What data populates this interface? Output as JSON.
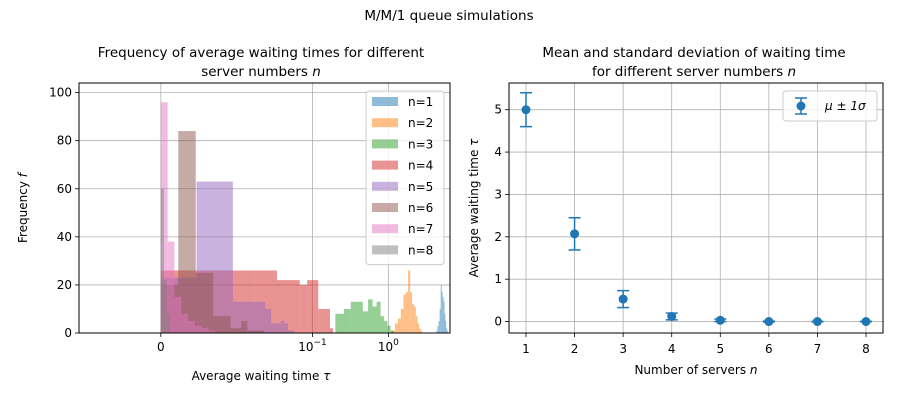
{
  "suptitle": "M/M/1 queue simulations",
  "chart_data": [
    {
      "type": "histogram",
      "title_line1": "Frequency of average waiting times for different",
      "title_line2": "server numbers",
      "title_var": "n",
      "xlabel": "Average waiting time",
      "xlabel_var": "τ",
      "ylabel": "Frequency",
      "ylabel_var": "f",
      "xscale": "symlog",
      "xlim": [
        -0.012,
        6.5
      ],
      "ylim": [
        0,
        104
      ],
      "xticks": [
        {
          "value": 0,
          "label": "0"
        },
        {
          "value": 0.1,
          "label": "10",
          "exp": "−1"
        },
        {
          "value": 1,
          "label": "10",
          "exp": "0"
        }
      ],
      "yticks": [
        0,
        20,
        40,
        60,
        80,
        100
      ],
      "grid": true,
      "legend": "top-right",
      "series": [
        {
          "name": "n=1",
          "color": "#1f77b4",
          "alpha": 0.5,
          "bins": [
            [
              4.3,
              4.45,
              1
            ],
            [
              4.45,
              4.6,
              3
            ],
            [
              4.6,
              4.75,
              5
            ],
            [
              4.75,
              4.9,
              10
            ],
            [
              4.9,
              5.05,
              20
            ],
            [
              5.05,
              5.2,
              17
            ],
            [
              5.2,
              5.35,
              15
            ],
            [
              5.35,
              5.5,
              13
            ],
            [
              5.5,
              5.65,
              8
            ],
            [
              5.65,
              5.8,
              5
            ],
            [
              5.8,
              5.95,
              2
            ],
            [
              5.95,
              6.1,
              1
            ]
          ]
        },
        {
          "name": "n=2",
          "color": "#ff7f0e",
          "alpha": 0.5,
          "bins": [
            [
              1.1,
              1.22,
              1
            ],
            [
              1.22,
              1.34,
              4
            ],
            [
              1.34,
              1.46,
              6
            ],
            [
              1.46,
              1.58,
              10
            ],
            [
              1.58,
              1.7,
              16
            ],
            [
              1.7,
              1.82,
              17
            ],
            [
              1.82,
              1.94,
              26
            ],
            [
              1.94,
              2.06,
              17
            ],
            [
              2.06,
              2.18,
              12
            ],
            [
              2.18,
              2.3,
              11
            ],
            [
              2.3,
              2.42,
              7
            ],
            [
              2.42,
              2.54,
              4
            ],
            [
              2.54,
              2.66,
              2
            ],
            [
              2.66,
              2.8,
              1
            ]
          ]
        },
        {
          "name": "n=3",
          "color": "#2ca02c",
          "alpha": 0.5,
          "bins": [
            [
              0.2,
              0.26,
              8
            ],
            [
              0.26,
              0.32,
              10
            ],
            [
              0.32,
              0.39,
              13
            ],
            [
              0.39,
              0.46,
              13
            ],
            [
              0.46,
              0.54,
              9
            ],
            [
              0.54,
              0.62,
              14
            ],
            [
              0.62,
              0.7,
              11
            ],
            [
              0.7,
              0.79,
              13
            ],
            [
              0.79,
              0.88,
              7
            ],
            [
              0.88,
              0.97,
              5
            ],
            [
              0.97,
              1.07,
              3
            ],
            [
              1.07,
              1.18,
              1
            ]
          ]
        },
        {
          "name": "n=4",
          "color": "#d62728",
          "alpha": 0.5,
          "bins": [
            [
              0,
              0.017,
              26
            ],
            [
              0.017,
              0.034,
              26
            ],
            [
              0.034,
              0.051,
              22
            ],
            [
              0.051,
              0.068,
              22
            ],
            [
              0.068,
              0.085,
              20
            ],
            [
              0.085,
              0.102,
              22
            ],
            [
              0.102,
              0.119,
              22
            ],
            [
              0.119,
              0.136,
              10
            ],
            [
              0.136,
              0.153,
              10
            ],
            [
              0.153,
              0.17,
              10
            ],
            [
              0.17,
              0.187,
              2
            ]
          ]
        },
        {
          "name": "n=5",
          "color": "#9467bd",
          "alpha": 0.5,
          "bins": [
            [
              0,
              0.0047,
              23
            ],
            [
              0.0047,
              0.0095,
              63
            ],
            [
              0.0095,
              0.0142,
              13
            ],
            [
              0.0142,
              0.019,
              13
            ],
            [
              0.019,
              0.0237,
              13
            ],
            [
              0.0237,
              0.0285,
              10
            ],
            [
              0.0285,
              0.0332,
              4
            ],
            [
              0.0332,
              0.038,
              4
            ],
            [
              0.038,
              0.0427,
              5
            ],
            [
              0.0427,
              0.0475,
              4
            ],
            [
              0.0475,
              0.0522,
              1
            ],
            [
              0.0522,
              0.057,
              1
            ]
          ]
        },
        {
          "name": "n=6",
          "color": "#8c564b",
          "alpha": 0.5,
          "bins": [
            [
              0,
              0.0023,
              20
            ],
            [
              0.0023,
              0.0046,
              84
            ],
            [
              0.0046,
              0.0069,
              25
            ],
            [
              0.0069,
              0.0092,
              7
            ],
            [
              0.0092,
              0.0115,
              2
            ],
            [
              0.0115,
              0.0138,
              5
            ],
            [
              0.0138,
              0.0161,
              1
            ],
            [
              0.0161,
              0.0184,
              1
            ],
            [
              0.0184,
              0.0207,
              1
            ],
            [
              0.0207,
              0.023,
              1
            ]
          ]
        },
        {
          "name": "n=7",
          "color": "#e377c2",
          "alpha": 0.5,
          "bins": [
            [
              0,
              0.0009,
              96
            ],
            [
              0.0009,
              0.0018,
              38
            ],
            [
              0.0018,
              0.0027,
              15
            ],
            [
              0.0027,
              0.0036,
              8
            ],
            [
              0.0036,
              0.0045,
              5
            ],
            [
              0.0045,
              0.0054,
              3
            ],
            [
              0.0054,
              0.0063,
              2
            ],
            [
              0.0063,
              0.0072,
              1
            ]
          ]
        },
        {
          "name": "n=8",
          "color": "#7f7f7f",
          "alpha": 0.5,
          "bins": [
            [
              0,
              0.0004,
              60
            ],
            [
              0.0004,
              0.0008,
              22
            ],
            [
              0.0008,
              0.0012,
              8
            ]
          ]
        }
      ]
    },
    {
      "type": "errorbar",
      "title_line1": "Mean and standard deviation of waiting time",
      "title_line2": "for different server numbers",
      "title_var": "n",
      "xlabel": "Number of servers",
      "xlabel_var": "n",
      "ylabel": "Average waiting time",
      "ylabel_var": "τ",
      "xlim": [
        0.65,
        8.35
      ],
      "ylim": [
        -0.27,
        5.63
      ],
      "xticks": [
        1,
        2,
        3,
        4,
        5,
        6,
        7,
        8
      ],
      "yticks": [
        0,
        1,
        2,
        3,
        4,
        5
      ],
      "grid": true,
      "legend": "top-right",
      "color": "#1f77b4",
      "series": [
        {
          "name": "μ ± 1σ"
        }
      ],
      "x": [
        1,
        2,
        3,
        4,
        5,
        6,
        7,
        8
      ],
      "y": [
        5.0,
        2.07,
        0.53,
        0.12,
        0.03,
        0.0,
        0.0,
        0.0
      ],
      "yerr": [
        0.4,
        0.38,
        0.2,
        0.08,
        0.03,
        0.01,
        0.005,
        0.003
      ]
    }
  ]
}
